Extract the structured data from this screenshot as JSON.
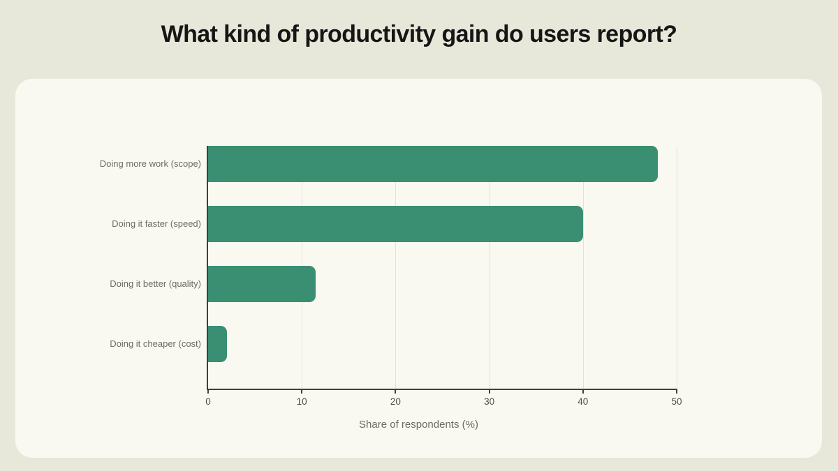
{
  "page": {
    "title": "What kind of productivity gain do users report?",
    "background_color": "#e7e8d9",
    "card_color": "#faf9f1"
  },
  "chart_data": {
    "type": "bar",
    "orientation": "horizontal",
    "title": "What kind of productivity gain do users report?",
    "categories": [
      "Doing more work (scope)",
      "Doing it faster (speed)",
      "Doing it better (quality)",
      "Doing it cheaper (cost)"
    ],
    "values": [
      48,
      40,
      11.5,
      2
    ],
    "xlabel": "Share of respondents (%)",
    "ylabel": "",
    "xlim": [
      0,
      50
    ],
    "xticks": [
      0,
      10,
      20,
      30,
      40,
      50
    ],
    "bar_color": "#3a8e72",
    "grid": true,
    "legend": false
  }
}
